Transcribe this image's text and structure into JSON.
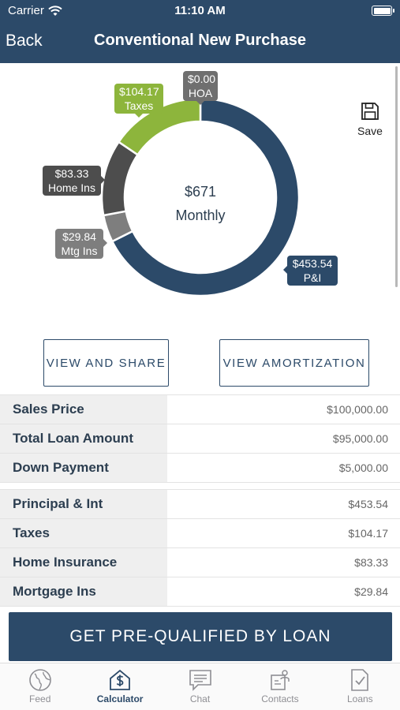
{
  "status_bar": {
    "carrier": "Carrier",
    "time": "11:10 AM"
  },
  "nav": {
    "back_label": "Back",
    "title": "Conventional New Purchase"
  },
  "toolbar": {
    "save_label": "Save"
  },
  "chart_data": {
    "type": "pie",
    "style": "donut",
    "center_amount": "$671",
    "center_label": "Monthly",
    "slices": [
      {
        "name": "P&I",
        "amount_label": "$453.54",
        "value": 453.54,
        "color": "#2c4a69"
      },
      {
        "name": "Mtg Ins",
        "amount_label": "$29.84",
        "value": 29.84,
        "color": "#7e7e7e"
      },
      {
        "name": "Home Ins",
        "amount_label": "$83.33",
        "value": 83.33,
        "color": "#4d4d4d"
      },
      {
        "name": "Taxes",
        "amount_label": "$104.17",
        "value": 104.17,
        "color": "#8db53c"
      },
      {
        "name": "HOA",
        "amount_label": "$0.00",
        "value": 0,
        "color": "#6f6f6f"
      }
    ]
  },
  "actions": {
    "share_label": "VIEW AND SHARE",
    "amortization_label": "VIEW AMORTIZATION"
  },
  "loan_summary": [
    {
      "label": "Sales Price",
      "value": "$100,000.00"
    },
    {
      "label": "Total Loan Amount",
      "value": "$95,000.00"
    },
    {
      "label": "Down Payment",
      "value": "$5,000.00"
    }
  ],
  "payment_breakdown": [
    {
      "label": "Principal & Int",
      "value": "$453.54"
    },
    {
      "label": "Taxes",
      "value": "$104.17"
    },
    {
      "label": "Home Insurance",
      "value": "$83.33"
    },
    {
      "label": "Mortgage Ins",
      "value": "$29.84"
    }
  ],
  "cta": {
    "label": "GET PRE-QUALIFIED BY LOAN"
  },
  "tabbar": {
    "items": [
      {
        "label": "Feed",
        "icon": "globe-icon"
      },
      {
        "label": "Calculator",
        "icon": "calculator-dollar-icon",
        "active": true
      },
      {
        "label": "Chat",
        "icon": "chat-icon"
      },
      {
        "label": "Contacts",
        "icon": "contacts-icon"
      },
      {
        "label": "Loans",
        "icon": "document-check-icon"
      }
    ]
  }
}
